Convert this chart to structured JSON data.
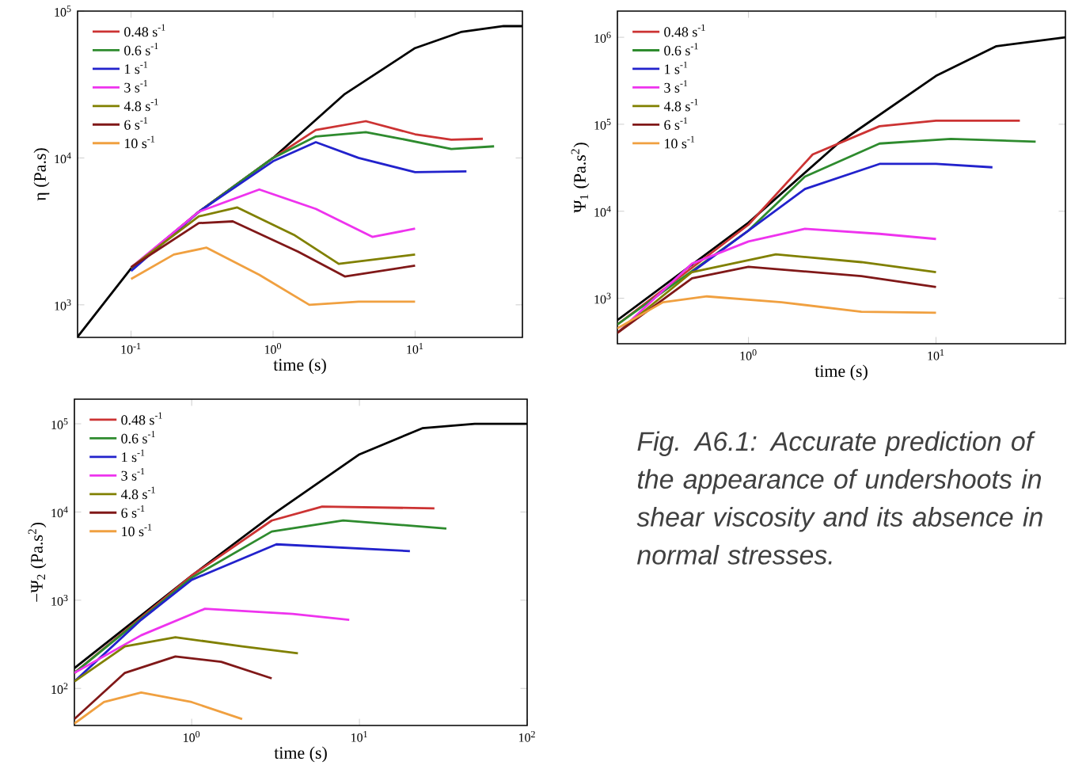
{
  "chart_data": [
    {
      "type": "line",
      "xlabel": "time (s)",
      "ylabel": "η (Pa.s)",
      "log": "xy",
      "legend": "top left",
      "xlim": [
        0.042,
        57
      ],
      "ylim": [
        600,
        100000
      ],
      "xticks": [
        {
          "value": 0.1,
          "label": "10$^{-1}$"
        },
        {
          "value": 1,
          "label": "10$^{0}$"
        },
        {
          "value": 10,
          "label": "10$^{1}$"
        }
      ],
      "yticks": [
        {
          "value": 1000,
          "label": "10$^{3}$"
        },
        {
          "value": 10000,
          "label": "10$^{4}$"
        },
        {
          "value": 100000,
          "label": "10$^{5}$"
        }
      ],
      "series": [
        {
          "color": "#000000",
          "x": [
            0.042,
            0.1,
            0.31,
            1,
            3.16,
            10,
            21,
            42,
            57
          ],
          "values": [
            605,
            1770,
            4400,
            10000,
            27000,
            56000,
            72000,
            79000,
            79000
          ]
        },
        {
          "name": "0.48 s$^{-1}$",
          "color": "#cc3333",
          "x": [
            0.1,
            0.3,
            1,
            2,
            4.5,
            10,
            18,
            30
          ],
          "values": [
            1770,
            4300,
            10000,
            15500,
            17800,
            14500,
            13300,
            13500
          ]
        },
        {
          "name": "0.6 s$^{-1}$",
          "color": "#2e8b2e",
          "x": [
            0.1,
            0.3,
            1,
            2,
            4.5,
            8,
            18,
            36
          ],
          "values": [
            1770,
            4300,
            10000,
            14000,
            15000,
            13500,
            11500,
            12000
          ]
        },
        {
          "name": "1 s$^{-1}$",
          "color": "#2222cc",
          "x": [
            0.1,
            0.3,
            1,
            2,
            4,
            10,
            23
          ],
          "values": [
            1700,
            4300,
            9500,
            12800,
            10000,
            8000,
            8100
          ]
        },
        {
          "name": "3 s$^{-1}$",
          "color": "#ee33ee",
          "x": [
            0.1,
            0.3,
            0.8,
            2,
            5,
            10
          ],
          "values": [
            1800,
            4300,
            6100,
            4500,
            2900,
            3300
          ]
        },
        {
          "name": "4.8 s$^{-1}$",
          "color": "#808000",
          "x": [
            0.1,
            0.3,
            0.56,
            1.4,
            2.9,
            10
          ],
          "values": [
            1800,
            4000,
            4600,
            3000,
            1900,
            2200
          ]
        },
        {
          "name": "6 s$^{-1}$",
          "color": "#801818",
          "x": [
            0.1,
            0.3,
            0.52,
            1.5,
            3.2,
            10
          ],
          "values": [
            1800,
            3600,
            3700,
            2300,
            1560,
            1850
          ]
        },
        {
          "name": "10 s$^{-1}$",
          "color": "#f0a040",
          "x": [
            0.1,
            0.2,
            0.34,
            0.8,
            1.8,
            4,
            10
          ],
          "values": [
            1500,
            2200,
            2450,
            1600,
            1000,
            1050,
            1050
          ]
        }
      ]
    },
    {
      "type": "line",
      "xlabel": "time (s)",
      "ylabel": "Ψ$_{1}$ (Pa.s$^{2}$)",
      "log": "xy",
      "legend": "top left",
      "xlim": [
        0.2,
        49
      ],
      "ylim": [
        300,
        2000000
      ],
      "xticks": [
        {
          "value": 1,
          "label": "10$^{0}$"
        },
        {
          "value": 10,
          "label": "10$^{1}$"
        }
      ],
      "yticks": [
        {
          "value": 1000,
          "label": "10$^{3}$"
        },
        {
          "value": 10000,
          "label": "10$^{4}$"
        },
        {
          "value": 100000,
          "label": "10$^{5}$"
        },
        {
          "value": 1000000,
          "label": "10$^{6}$"
        }
      ],
      "series": [
        {
          "color": "#000000",
          "x": [
            0.2,
            1,
            3,
            10,
            21,
            49
          ],
          "values": [
            560,
            7400,
            60000,
            360000,
            790000,
            1000000
          ]
        },
        {
          "name": "0.48 s$^{-1}$",
          "color": "#cc3333",
          "x": [
            0.2,
            1,
            2.2,
            5,
            10,
            28
          ],
          "values": [
            500,
            7000,
            45000,
            95000,
            110000,
            110000
          ]
        },
        {
          "name": "0.6 s$^{-1}$",
          "color": "#2e8b2e",
          "x": [
            0.2,
            1,
            2,
            5,
            12,
            34
          ],
          "values": [
            500,
            6000,
            25000,
            60000,
            68000,
            63000
          ]
        },
        {
          "name": "1 s$^{-1}$",
          "color": "#2222cc",
          "x": [
            0.5,
            1,
            2,
            5,
            10,
            20
          ],
          "values": [
            2000,
            6000,
            18000,
            35000,
            35000,
            32000
          ]
        },
        {
          "name": "3 s$^{-1}$",
          "color": "#ee33ee",
          "x": [
            0.2,
            0.5,
            1,
            2,
            5,
            10
          ],
          "values": [
            400,
            2500,
            4500,
            6300,
            5500,
            4800
          ]
        },
        {
          "name": "4.8 s$^{-1}$",
          "color": "#808000",
          "x": [
            0.2,
            0.5,
            1.4,
            4,
            10
          ],
          "values": [
            400,
            2000,
            3200,
            2600,
            2000
          ]
        },
        {
          "name": "6 s$^{-1}$",
          "color": "#801818",
          "x": [
            0.2,
            0.5,
            1,
            4,
            10
          ],
          "values": [
            400,
            1700,
            2300,
            1800,
            1350
          ]
        },
        {
          "name": "10 s$^{-1}$",
          "color": "#f0a040",
          "x": [
            0.2,
            0.35,
            0.6,
            1.5,
            4,
            10
          ],
          "values": [
            450,
            900,
            1050,
            900,
            700,
            680
          ]
        }
      ]
    },
    {
      "type": "line",
      "xlabel": "time (s)",
      "ylabel": "−Ψ$_{2}$ (Pa.s$^{2}$)",
      "log": "xy",
      "legend": "top left",
      "xlim": [
        0.2,
        100
      ],
      "ylim": [
        38,
        190000
      ],
      "xticks": [
        {
          "value": 1,
          "label": "10$^{0}$"
        },
        {
          "value": 10,
          "label": "10$^{1}$"
        },
        {
          "value": 100,
          "label": "10$^{2}$"
        }
      ],
      "yticks": [
        {
          "value": 100,
          "label": "10$^{2}$"
        },
        {
          "value": 1000,
          "label": "10$^{3}$"
        },
        {
          "value": 10000,
          "label": "10$^{4}$"
        },
        {
          "value": 100000,
          "label": "10$^{5}$"
        }
      ],
      "annotations": [
        "*Fig. A6.1: Accurate prediction of the appearance of undershoots in shear viscosity and its absence in normal stresses.*"
      ],
      "series": [
        {
          "color": "#000000",
          "x": [
            0.2,
            1,
            3.2,
            10,
            23.7,
            48.7,
            100
          ],
          "values": [
            170,
            1900,
            10000,
            45000,
            89000,
            100000,
            100000
          ]
        },
        {
          "name": "0.48 s$^{-1}$",
          "color": "#cc3333",
          "x": [
            0.2,
            1,
            3,
            6,
            28
          ],
          "values": [
            150,
            1900,
            8000,
            11500,
            11000
          ]
        },
        {
          "name": "0.6 s$^{-1}$",
          "color": "#2e8b2e",
          "x": [
            0.2,
            1,
            3,
            8,
            33
          ],
          "values": [
            150,
            1800,
            6000,
            8000,
            6500
          ]
        },
        {
          "name": "1 s$^{-1}$",
          "color": "#2222cc",
          "x": [
            0.2,
            0.5,
            1,
            3.2,
            20
          ],
          "values": [
            120,
            600,
            1700,
            4300,
            3600
          ]
        },
        {
          "name": "3 s$^{-1}$",
          "color": "#ee33ee",
          "x": [
            0.2,
            0.5,
            1.2,
            4,
            8.7
          ],
          "values": [
            150,
            400,
            800,
            700,
            600
          ]
        },
        {
          "name": "4.8 s$^{-1}$",
          "color": "#808000",
          "x": [
            0.2,
            0.4,
            0.8,
            2,
            4.3
          ],
          "values": [
            120,
            300,
            380,
            300,
            250
          ]
        },
        {
          "name": "6 s$^{-1}$",
          "color": "#801818",
          "x": [
            0.2,
            0.4,
            0.8,
            1.5,
            3
          ],
          "values": [
            45,
            150,
            230,
            200,
            130
          ]
        },
        {
          "name": "10 s$^{-1}$",
          "color": "#f0a040",
          "x": [
            0.2,
            0.3,
            0.5,
            1,
            2
          ],
          "values": [
            40,
            70,
            90,
            70,
            45
          ]
        }
      ]
    }
  ]
}
